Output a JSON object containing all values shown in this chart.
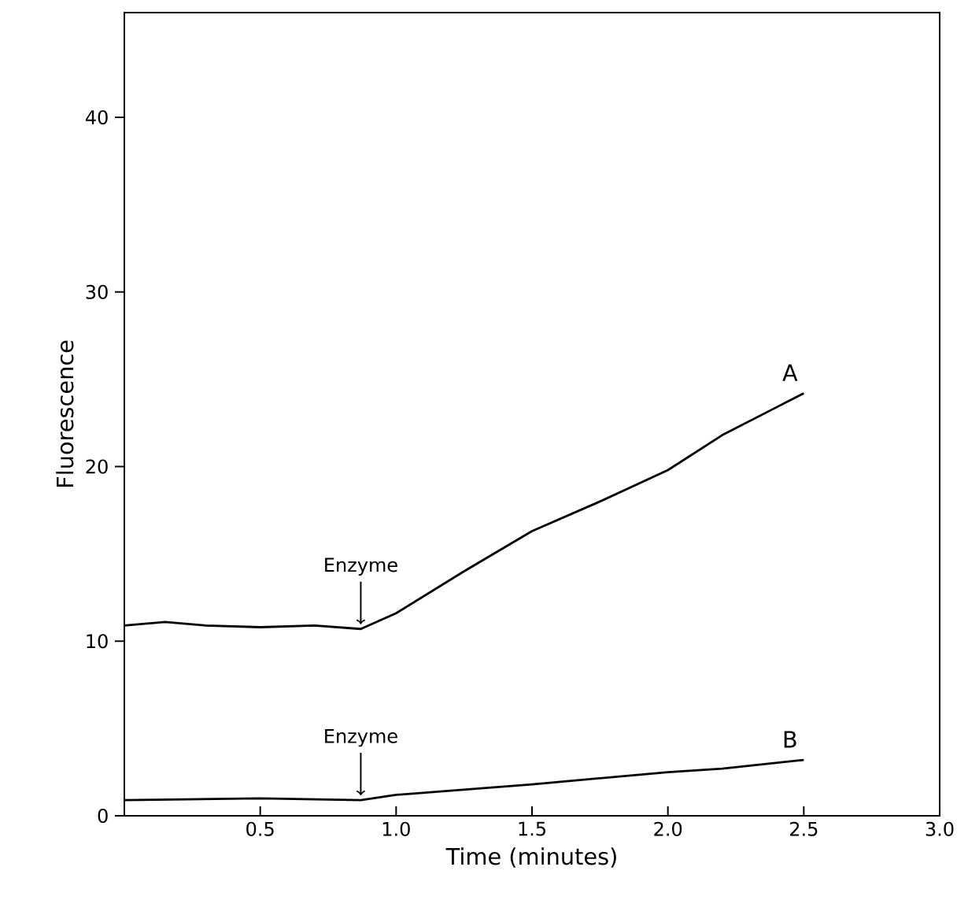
{
  "chart_data": {
    "type": "line",
    "xlabel": "Time (minutes)",
    "ylabel": "Fluorescence",
    "xlim": [
      0,
      3.0
    ],
    "ylim": [
      0,
      46
    ],
    "xticks": [
      {
        "value": 0.5,
        "label": "0.5"
      },
      {
        "value": 1.0,
        "label": "1.0"
      },
      {
        "value": 1.5,
        "label": "1.5"
      },
      {
        "value": 2.0,
        "label": "2.0"
      },
      {
        "value": 2.5,
        "label": "2.5"
      },
      {
        "value": 3.0,
        "label": "3.0"
      }
    ],
    "yticks": [
      0,
      10,
      20,
      30,
      40
    ],
    "series": [
      {
        "name": "A",
        "color": "#000000",
        "x": [
          0,
          0.15,
          0.3,
          0.5,
          0.7,
          0.87,
          1.0,
          1.25,
          1.5,
          1.75,
          2.0,
          2.2,
          2.4,
          2.5
        ],
        "values": [
          10.9,
          11.1,
          10.9,
          10.8,
          10.9,
          10.7,
          11.6,
          14.0,
          16.3,
          18.0,
          19.8,
          21.8,
          23.4,
          24.2
        ]
      },
      {
        "name": "B",
        "color": "#000000",
        "x": [
          0,
          0.5,
          0.87,
          1.0,
          1.5,
          2.0,
          2.2,
          2.5
        ],
        "values": [
          0.9,
          1.0,
          0.9,
          1.2,
          1.8,
          2.5,
          2.7,
          3.2
        ]
      }
    ],
    "annotations": [
      {
        "text": "Enzyme",
        "x": 0.87,
        "y": 10.7
      },
      {
        "text": "Enzyme",
        "x": 0.87,
        "y": 0.9
      }
    ],
    "grid": false,
    "marker": "none",
    "line_style": "solid"
  }
}
